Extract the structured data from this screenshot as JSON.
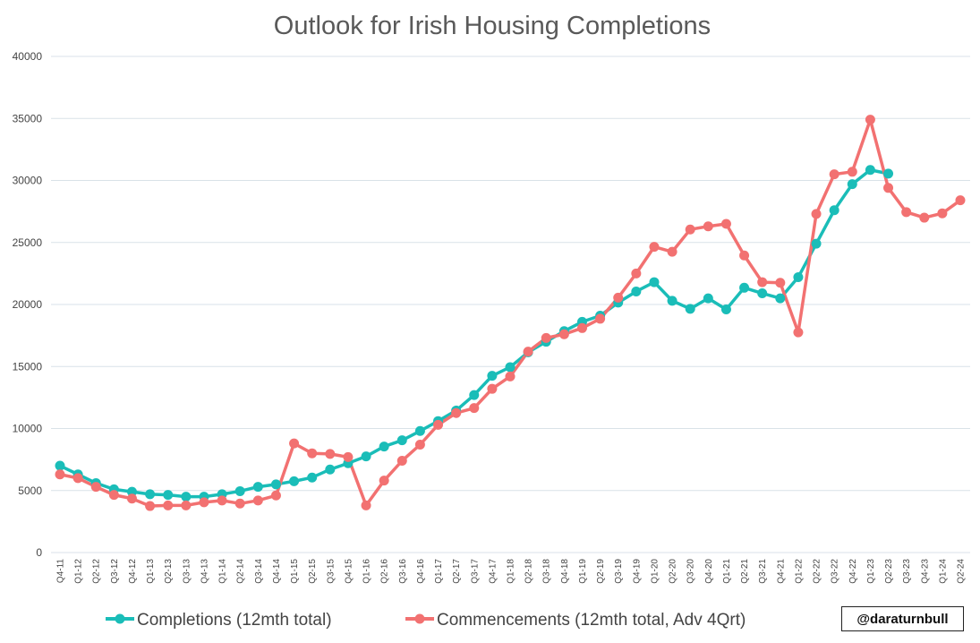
{
  "colors": {
    "completions": "#1ABDB8",
    "commencements": "#F27171",
    "grid": "#D9E2E8"
  },
  "credit": "@daraturnbull",
  "chart_data": {
    "type": "line",
    "title": "Outlook for Irish Housing Completions",
    "xlabel": "",
    "ylabel": "",
    "ylim": [
      0,
      40000
    ],
    "yticks": [
      0,
      5000,
      10000,
      15000,
      20000,
      25000,
      30000,
      35000,
      40000
    ],
    "grid": true,
    "legend_position": "bottom",
    "categories": [
      "Q4-11",
      "Q1-12",
      "Q2-12",
      "Q3-12",
      "Q4-12",
      "Q1-13",
      "Q2-13",
      "Q3-13",
      "Q4-13",
      "Q1-14",
      "Q2-14",
      "Q3-14",
      "Q4-14",
      "Q1-15",
      "Q2-15",
      "Q3-15",
      "Q4-15",
      "Q1-16",
      "Q2-16",
      "Q3-16",
      "Q4-16",
      "Q1-17",
      "Q2-17",
      "Q3-17",
      "Q4-17",
      "Q1-18",
      "Q2-18",
      "Q3-18",
      "Q4-18",
      "Q1-19",
      "Q2-19",
      "Q3-19",
      "Q4-19",
      "Q1-20",
      "Q2-20",
      "Q3-20",
      "Q4-20",
      "Q1-21",
      "Q2-21",
      "Q3-21",
      "Q4-21",
      "Q1-22",
      "Q2-22",
      "Q3-22",
      "Q4-22",
      "Q1-23",
      "Q2-23",
      "Q3-23",
      "Q4-23",
      "Q1-24",
      "Q2-24"
    ],
    "series": [
      {
        "name": "Completions (12mth total)",
        "color": "#1ABDB8",
        "values": [
          7000,
          6300,
          5600,
          5100,
          4900,
          4700,
          4650,
          4500,
          4500,
          4700,
          4950,
          5300,
          5500,
          5750,
          6050,
          6700,
          7200,
          7750,
          8550,
          9050,
          9800,
          10600,
          11450,
          12700,
          14250,
          14950,
          16150,
          17000,
          17850,
          18600,
          19100,
          20150,
          21050,
          21800,
          20300,
          19650,
          20500,
          19600,
          21350,
          20900,
          20500,
          22200,
          24900,
          27600,
          29700,
          30850,
          30550,
          null,
          null,
          null,
          null
        ]
      },
      {
        "name": "Commencements (12mth total, Adv 4Qrt)",
        "color": "#F27171",
        "values": [
          6300,
          6000,
          5300,
          4650,
          4350,
          3750,
          3800,
          3800,
          4050,
          4200,
          3950,
          4200,
          4600,
          8800,
          8000,
          7950,
          7700,
          3800,
          5800,
          7400,
          8700,
          10300,
          11250,
          11650,
          13200,
          14200,
          16200,
          17300,
          17600,
          18100,
          18850,
          20550,
          22500,
          24650,
          24250,
          26050,
          26300,
          26500,
          23950,
          21800,
          21750,
          17750,
          27300,
          30500,
          30700,
          34900,
          29400,
          27450,
          27000,
          27350,
          28400
        ]
      }
    ]
  }
}
